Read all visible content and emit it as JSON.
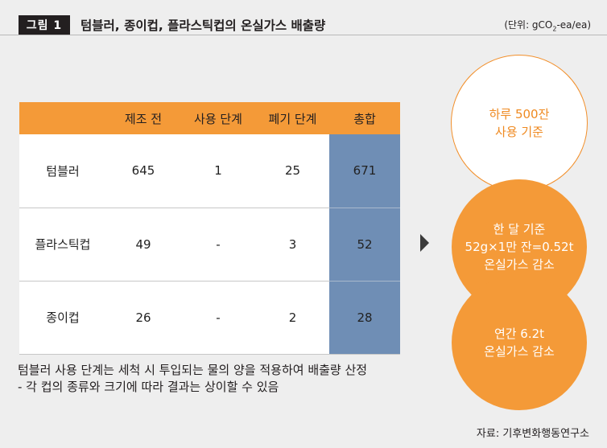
{
  "header": {
    "badge": "그림 1",
    "title": "텀블러, 종이컵, 플라스틱컵의 온실가스 배출량",
    "unit_prefix": "(단위: gCO",
    "unit_sub": "2",
    "unit_suffix": "-ea/ea)"
  },
  "table": {
    "columns": [
      "",
      "제조 전",
      "사용 단계",
      "폐기 단계",
      "총합"
    ],
    "rows": [
      {
        "name": "텀블러",
        "pre": "645",
        "use": "1",
        "disposal": "25",
        "total": "671"
      },
      {
        "name": "플라스틱컵",
        "pre": "49",
        "use": "-",
        "disposal": "3",
        "total": "52"
      },
      {
        "name": "종이컵",
        "pre": "26",
        "use": "-",
        "disposal": "2",
        "total": "28"
      }
    ]
  },
  "footnote": {
    "line1": "텀블러 사용 단계는 세척 시 투입되는 물의 양을 적용하여 배출량 산정",
    "line2": "- 각 컵의 종류와 크기에 따라 결과는 상이할 수 있음"
  },
  "circles": [
    {
      "line1": "하루 500잔",
      "line2": "사용 기준"
    },
    {
      "line1": "한 달 기준",
      "line2": "52g×1만 잔=0.52t",
      "line3": "온실가스 감소"
    },
    {
      "line1": "연간 6.2t",
      "line2": "온실가스 감소"
    }
  ],
  "source": "자료: 기후변화행동연구소",
  "colors": {
    "orange": "#f49a38",
    "blue": "#6f8eb5",
    "badge": "#231f20"
  }
}
